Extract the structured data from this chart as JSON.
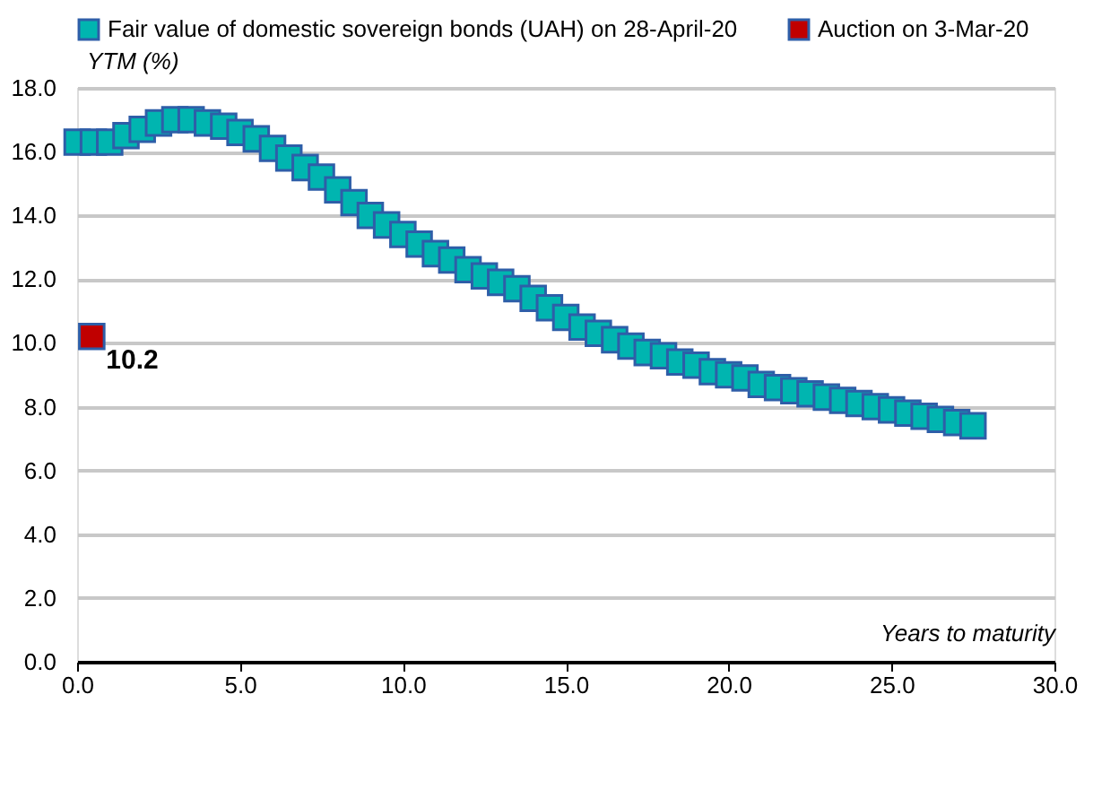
{
  "chart_data": {
    "type": "scatter",
    "xlabel": "Years to maturity",
    "ylabel": "YTM (%)",
    "series": [
      {
        "name": "Fair value of domestic sovereign bonds (UAH) on 28-April-20",
        "color": "#00b5b0",
        "x": [
          0,
          0.5,
          1,
          1.5,
          2,
          2.5,
          3,
          3.5,
          4,
          4.5,
          5,
          5.5,
          6,
          6.5,
          7,
          7.5,
          8,
          8.5,
          9,
          9.5,
          10,
          10.5,
          11,
          11.5,
          12,
          12.5,
          13,
          13.5,
          14,
          14.5,
          15,
          15.5,
          16,
          16.5,
          17,
          17.5,
          18,
          18.5,
          19,
          19.5,
          20,
          20.5,
          21,
          21.5,
          22,
          22.5,
          23,
          23.5,
          24,
          24.5,
          25,
          25.5,
          26,
          26.5,
          27,
          27.5
        ],
        "values": [
          16.3,
          16.3,
          16.3,
          16.5,
          16.7,
          16.9,
          17.0,
          17.0,
          16.9,
          16.8,
          16.6,
          16.4,
          16.1,
          15.8,
          15.5,
          15.2,
          14.8,
          14.4,
          14.0,
          13.7,
          13.4,
          13.1,
          12.8,
          12.6,
          12.3,
          12.1,
          11.9,
          11.7,
          11.4,
          11.1,
          10.8,
          10.5,
          10.3,
          10.1,
          9.9,
          9.7,
          9.6,
          9.4,
          9.3,
          9.1,
          9.0,
          8.9,
          8.7,
          8.6,
          8.5,
          8.4,
          8.3,
          8.2,
          8.1,
          8.0,
          7.9,
          7.8,
          7.7,
          7.6,
          7.5,
          7.4
        ]
      },
      {
        "name": "Auction on 3-Mar-20",
        "color": "#c00000",
        "x": [
          0.45
        ],
        "values": [
          10.2
        ],
        "value_labels": [
          "10.2"
        ]
      }
    ],
    "marker": "square",
    "xlim": [
      0,
      30
    ],
    "xticks": [
      {
        "value": 0,
        "label": "0.0"
      },
      {
        "value": 5,
        "label": "5.0"
      },
      {
        "value": 10,
        "label": "10.0"
      },
      {
        "value": 15,
        "label": "15.0"
      },
      {
        "value": 20,
        "label": "20.0"
      },
      {
        "value": 25,
        "label": "25.0"
      },
      {
        "value": 30,
        "label": "30.0"
      }
    ],
    "ylim": [
      0,
      18
    ],
    "yticks": [
      {
        "value": 0,
        "label": "0.0"
      },
      {
        "value": 2,
        "label": "2.0"
      },
      {
        "value": 4,
        "label": "4.0"
      },
      {
        "value": 6,
        "label": "6.0"
      },
      {
        "value": 8,
        "label": "8.0"
      },
      {
        "value": 10,
        "label": "10.0"
      },
      {
        "value": 12,
        "label": "12.0"
      },
      {
        "value": 14,
        "label": "14.0"
      },
      {
        "value": 16,
        "label": "16.0"
      },
      {
        "value": 18,
        "label": "18.0"
      }
    ],
    "grid": "y",
    "legend": "top"
  }
}
